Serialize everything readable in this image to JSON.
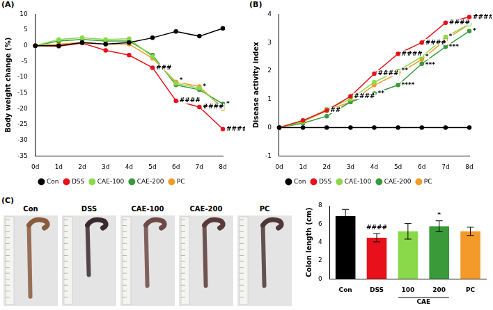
{
  "chart_data": [
    {
      "panel": "(A)",
      "type": "line",
      "y_label": "Body weight change (%)",
      "categories": [
        "0d",
        "1d",
        "2d",
        "3d",
        "4d",
        "5d",
        "6d",
        "7d",
        "8d"
      ],
      "series": [
        {
          "name": "Con",
          "color": "#000000",
          "marker": "circle",
          "values": [
            0,
            0,
            1,
            0.5,
            1,
            2.5,
            4.5,
            3,
            5.5
          ]
        },
        {
          "name": "DSS",
          "color": "#e8101a",
          "marker": "circle",
          "values": [
            0,
            -0.2,
            0.8,
            -1.5,
            -3,
            -7,
            -17.5,
            -19.5,
            -26.5
          ]
        },
        {
          "name": "CAE-100",
          "color": "#8ad94a",
          "marker": "circle",
          "values": [
            0,
            2,
            2.5,
            2,
            2.2,
            -3.5,
            -12,
            -13.5,
            -19.5
          ]
        },
        {
          "name": "CAE-200",
          "color": "#3a9a3a",
          "marker": "circle",
          "values": [
            0,
            1.5,
            2,
            1.5,
            1.5,
            -3,
            -12.5,
            -14,
            -18.5
          ]
        },
        {
          "name": "PC",
          "color": "#f39a2a",
          "marker": "circle",
          "values": [
            0,
            0.5,
            1,
            0.5,
            0.5,
            -4,
            -11.5,
            -13,
            -20
          ]
        }
      ],
      "ylim": [
        -35,
        10
      ],
      "yticks": [
        -35,
        -30,
        -25,
        -20,
        -15,
        -10,
        -5,
        0,
        5,
        10
      ],
      "grid": false,
      "legend": "bottom",
      "annotations": [
        {
          "x": "5d",
          "y": -7,
          "text": "###"
        },
        {
          "x": "6d",
          "y": -17.5,
          "text": "####"
        },
        {
          "x": "7d",
          "y": -19.5,
          "text": "####"
        },
        {
          "x": "8d",
          "y": -26.5,
          "text": "####"
        },
        {
          "x": "6d",
          "y": -11,
          "text": "*"
        },
        {
          "x": "7d",
          "y": -13,
          "text": "*"
        },
        {
          "x": "8d",
          "y": -18.5,
          "text": "*"
        }
      ]
    },
    {
      "panel": "(B)",
      "type": "line",
      "y_label": "Disease activity index",
      "categories": [
        "0d",
        "1d",
        "2d",
        "3d",
        "4d",
        "5d",
        "6d",
        "7d",
        "8d"
      ],
      "series": [
        {
          "name": "Con",
          "color": "#000000",
          "marker": "circle",
          "values": [
            0,
            0,
            0,
            0,
            0,
            0,
            0,
            0,
            0
          ]
        },
        {
          "name": "DSS",
          "color": "#e8101a",
          "marker": "circle",
          "values": [
            0,
            0.25,
            0.6,
            1.1,
            1.9,
            2.6,
            3.0,
            3.7,
            3.9
          ]
        },
        {
          "name": "CAE-100",
          "color": "#8ad94a",
          "marker": "circle",
          "values": [
            0,
            0.2,
            0.65,
            1.0,
            1.6,
            2.0,
            2.5,
            3.2,
            3.65
          ]
        },
        {
          "name": "CAE-200",
          "color": "#3a9a3a",
          "marker": "circle",
          "values": [
            0,
            0.15,
            0.4,
            0.9,
            1.2,
            1.5,
            2.25,
            2.85,
            3.4
          ]
        },
        {
          "name": "PC",
          "color": "#f39a2a",
          "marker": "circle",
          "values": [
            0,
            0.2,
            0.6,
            0.9,
            1.5,
            1.9,
            2.4,
            3.1,
            3.65
          ]
        }
      ],
      "ylim": [
        -1,
        4
      ],
      "yticks": [
        -1,
        0,
        1,
        2,
        3,
        4
      ],
      "grid": false,
      "legend": "bottom",
      "annotations": [
        {
          "x": "2d",
          "y": 0.6,
          "text": "##"
        },
        {
          "x": "3d",
          "y": 1.1,
          "text": "####"
        },
        {
          "x": "4d",
          "y": 1.9,
          "text": "####"
        },
        {
          "x": "5d",
          "y": 2.6,
          "text": "####"
        },
        {
          "x": "6d",
          "y": 3.0,
          "text": "####"
        },
        {
          "x": "7d",
          "y": 3.7,
          "text": "####"
        },
        {
          "x": "8d",
          "y": 3.9,
          "text": "####"
        },
        {
          "x": "4d",
          "y": 1.2,
          "text": "**"
        },
        {
          "x": "5d",
          "y": 1.5,
          "text": "****"
        },
        {
          "x": "5d",
          "y": 2.0,
          "text": "**"
        },
        {
          "x": "6d",
          "y": 2.2,
          "text": "***"
        },
        {
          "x": "6d",
          "y": 2.5,
          "text": "*"
        },
        {
          "x": "7d",
          "y": 2.85,
          "text": "***"
        },
        {
          "x": "7d",
          "y": 3.2,
          "text": "*"
        },
        {
          "x": "8d",
          "y": 3.4,
          "text": "*"
        }
      ]
    },
    {
      "type": "bar",
      "y_label": "Colon length (cm)",
      "categories": [
        "Con",
        "DSS",
        "100",
        "200",
        "PC"
      ],
      "values": [
        6.85,
        4.5,
        5.2,
        5.75,
        5.2
      ],
      "errors": [
        0.75,
        0.45,
        0.85,
        0.6,
        0.45
      ],
      "colors": [
        "#000000",
        "#e8101a",
        "#8ad94a",
        "#3a9a3a",
        "#f39a2a"
      ],
      "category_groups": [
        {
          "label": "CAE",
          "categories": [
            "100",
            "200"
          ]
        }
      ],
      "ylim": [
        0,
        8
      ],
      "yticks": [
        0,
        2,
        4,
        6,
        8
      ],
      "grid": false,
      "annotations": [
        {
          "x": "DSS",
          "y": 4.95,
          "text": "####"
        },
        {
          "x": "200",
          "y": 6.35,
          "text": "*"
        }
      ]
    }
  ],
  "photos": {
    "panel": "(C)",
    "labels": [
      "Con",
      "DSS",
      "CAE-100",
      "CAE-200",
      "PC"
    ]
  }
}
